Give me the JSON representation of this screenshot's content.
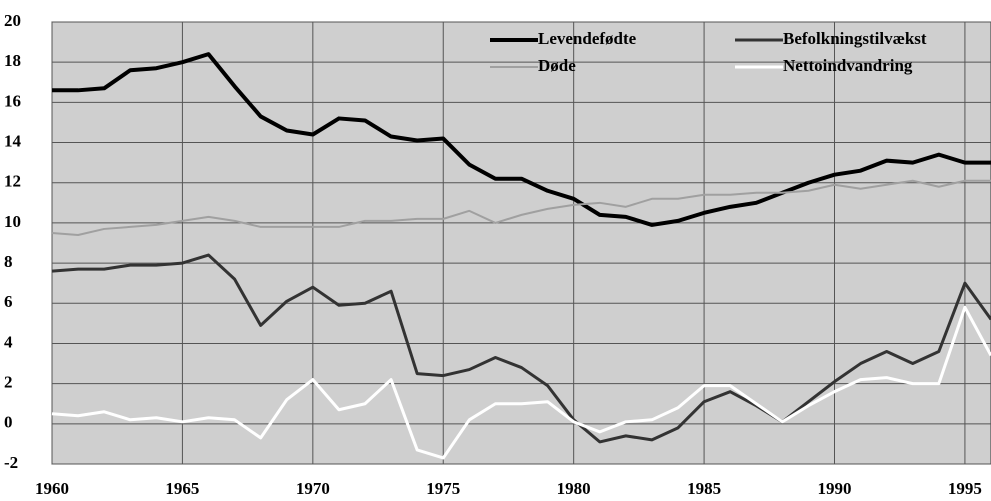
{
  "chart_data": {
    "type": "line",
    "x": [
      1960,
      1961,
      1962,
      1963,
      1964,
      1965,
      1966,
      1967,
      1968,
      1969,
      1970,
      1971,
      1972,
      1973,
      1974,
      1975,
      1976,
      1977,
      1978,
      1979,
      1980,
      1981,
      1982,
      1983,
      1984,
      1985,
      1986,
      1987,
      1988,
      1989,
      1990,
      1991,
      1992,
      1993,
      1994,
      1995,
      1996
    ],
    "series": [
      {
        "name": "Levendefødte",
        "color": "#000000",
        "width": 4,
        "values": [
          16.6,
          16.6,
          16.7,
          17.6,
          17.7,
          18.0,
          18.4,
          16.8,
          15.3,
          14.6,
          14.4,
          15.2,
          15.1,
          14.3,
          14.1,
          14.2,
          12.9,
          12.2,
          12.2,
          11.6,
          11.2,
          10.4,
          10.3,
          9.9,
          10.1,
          10.5,
          10.8,
          11.0,
          11.5,
          12.0,
          12.4,
          12.6,
          13.1,
          13.0,
          13.4,
          13.0,
          13.0
        ]
      },
      {
        "name": "Befolkningstilvækst",
        "color": "#333333",
        "width": 3,
        "values": [
          7.6,
          7.7,
          7.7,
          7.9,
          7.9,
          8.0,
          8.4,
          7.2,
          4.9,
          6.1,
          6.8,
          5.9,
          6.0,
          6.6,
          2.5,
          2.4,
          2.7,
          3.3,
          2.8,
          1.9,
          0.2,
          -0.9,
          -0.6,
          -0.8,
          -0.2,
          1.1,
          1.6,
          0.9,
          0.1,
          1.1,
          2.1,
          3.0,
          3.6,
          3.0,
          3.6,
          7.0,
          5.2
        ]
      },
      {
        "name": "Døde",
        "color": "#a0a0a0",
        "width": 2,
        "values": [
          9.5,
          9.4,
          9.7,
          9.8,
          9.9,
          10.1,
          10.3,
          10.1,
          9.8,
          9.8,
          9.8,
          9.8,
          10.1,
          10.1,
          10.2,
          10.2,
          10.6,
          10.0,
          10.4,
          10.7,
          10.9,
          11.0,
          10.8,
          11.2,
          11.2,
          11.4,
          11.4,
          11.5,
          11.5,
          11.6,
          11.9,
          11.7,
          11.9,
          12.1,
          11.8,
          12.1,
          12.1
        ]
      },
      {
        "name": "Nettoindvandring",
        "color": "#ffffff",
        "width": 3,
        "values": [
          0.5,
          0.4,
          0.6,
          0.2,
          0.3,
          0.1,
          0.3,
          0.2,
          -0.7,
          1.2,
          2.2,
          0.7,
          1.0,
          2.2,
          -1.3,
          -1.7,
          0.2,
          1.0,
          1.0,
          1.1,
          0.1,
          -0.4,
          0.1,
          0.2,
          0.8,
          1.9,
          1.9,
          1.0,
          0.1,
          0.9,
          1.6,
          2.2,
          2.3,
          2.0,
          2.0,
          5.8,
          3.4
        ]
      }
    ],
    "xlim": [
      1960,
      1996
    ],
    "xticks": [
      1960,
      1965,
      1970,
      1975,
      1980,
      1985,
      1990,
      1995
    ],
    "ylim": [
      -2,
      20
    ],
    "yticks": [
      -2,
      0,
      2,
      4,
      6,
      8,
      10,
      12,
      14,
      16,
      18,
      20
    ],
    "grid": true,
    "legend": "upper right",
    "background": "#cfcfcf"
  }
}
